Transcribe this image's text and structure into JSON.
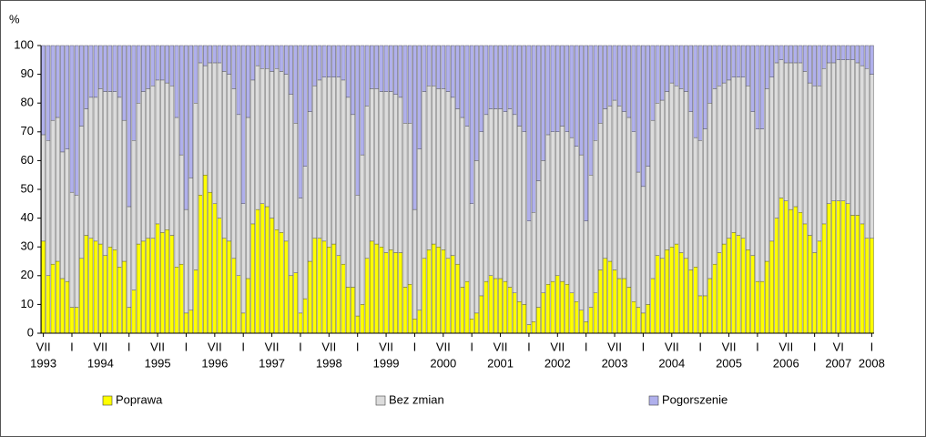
{
  "chart_data": {
    "type": "stacked_bar",
    "y_unit": "%",
    "ylim": [
      0,
      100
    ],
    "yticks": [
      0,
      10,
      20,
      30,
      40,
      50,
      60,
      70,
      80,
      90,
      100
    ],
    "grid": false,
    "legend": "bottom",
    "categories": [
      "VII",
      null,
      null,
      null,
      null,
      null,
      "I",
      null,
      null,
      null,
      null,
      null,
      "VII",
      null,
      null,
      null,
      null,
      null,
      "I",
      null,
      null,
      null,
      null,
      null,
      "VII",
      null,
      null,
      null,
      null,
      null,
      "I",
      null,
      null,
      null,
      null,
      null,
      "VII",
      null,
      null,
      null,
      null,
      null,
      "I",
      null,
      null,
      null,
      null,
      null,
      "VII",
      null,
      null,
      null,
      null,
      null,
      "I",
      null,
      null,
      null,
      null,
      null,
      "VII",
      null,
      null,
      null,
      null,
      null,
      "I",
      null,
      null,
      null,
      null,
      null,
      "VII",
      null,
      null,
      null,
      null,
      null,
      "I",
      null,
      null,
      null,
      null,
      null,
      "VII",
      null,
      null,
      null,
      null,
      null,
      "I",
      null,
      null,
      null,
      null,
      null,
      "VII",
      null,
      null,
      null,
      null,
      null,
      "I",
      null,
      null,
      null,
      null,
      null,
      "VII",
      null,
      null,
      null,
      null,
      null,
      "I",
      null,
      null,
      null,
      null,
      null,
      "VII",
      null,
      null,
      null,
      null,
      null,
      "I",
      null,
      null,
      null,
      null,
      null,
      "VII",
      null,
      null,
      null,
      null,
      null,
      "I",
      null,
      null,
      null,
      null,
      null,
      "VII",
      null,
      null,
      null,
      null,
      null,
      "I",
      null,
      null,
      null,
      null,
      null,
      "VII",
      null,
      null,
      null,
      null,
      null,
      "I",
      null,
      null,
      null,
      null,
      "VI",
      null,
      null,
      null,
      null,
      null,
      null,
      "I"
    ],
    "category_years": [
      "1993",
      null,
      null,
      null,
      null,
      null,
      null,
      null,
      null,
      null,
      null,
      null,
      "1994",
      null,
      null,
      null,
      null,
      null,
      null,
      null,
      null,
      null,
      null,
      null,
      "1995",
      null,
      null,
      null,
      null,
      null,
      null,
      null,
      null,
      null,
      null,
      null,
      "1996",
      null,
      null,
      null,
      null,
      null,
      null,
      null,
      null,
      null,
      null,
      null,
      "1997",
      null,
      null,
      null,
      null,
      null,
      null,
      null,
      null,
      null,
      null,
      null,
      "1998",
      null,
      null,
      null,
      null,
      null,
      null,
      null,
      null,
      null,
      null,
      null,
      "1999",
      null,
      null,
      null,
      null,
      null,
      null,
      null,
      null,
      null,
      null,
      null,
      "2000",
      null,
      null,
      null,
      null,
      null,
      null,
      null,
      null,
      null,
      null,
      null,
      "2001",
      null,
      null,
      null,
      null,
      null,
      null,
      null,
      null,
      null,
      null,
      null,
      "2002",
      null,
      null,
      null,
      null,
      null,
      null,
      null,
      null,
      null,
      null,
      null,
      "2003",
      null,
      null,
      null,
      null,
      null,
      null,
      null,
      null,
      null,
      null,
      null,
      "2004",
      null,
      null,
      null,
      null,
      null,
      null,
      null,
      null,
      null,
      null,
      null,
      "2005",
      null,
      null,
      null,
      null,
      null,
      null,
      null,
      null,
      null,
      null,
      null,
      "2006",
      null,
      null,
      null,
      null,
      null,
      null,
      null,
      null,
      null,
      null,
      "2007",
      null,
      null,
      null,
      null,
      null,
      null,
      "2008"
    ],
    "series": [
      {
        "name": "Poprawa",
        "color": "#ffff00",
        "values": [
          32,
          20,
          24,
          25,
          19,
          18,
          9,
          9,
          26,
          34,
          33,
          32,
          31,
          27,
          30,
          29,
          23,
          25,
          9,
          15,
          31,
          32,
          33,
          33,
          38,
          35,
          36,
          34,
          23,
          24,
          7,
          8,
          22,
          48,
          55,
          49,
          45,
          40,
          33,
          32,
          26,
          20,
          7,
          19,
          38,
          43,
          45,
          44,
          40,
          36,
          35,
          32,
          20,
          21,
          7,
          12,
          25,
          33,
          33,
          32,
          30,
          31,
          27,
          24,
          16,
          16,
          6,
          10,
          26,
          32,
          31,
          30,
          28,
          29,
          28,
          28,
          16,
          17,
          5,
          8,
          26,
          29,
          31,
          30,
          29,
          26,
          27,
          24,
          16,
          18,
          5,
          7,
          13,
          18,
          20,
          19,
          19,
          18,
          16,
          14,
          11,
          10,
          3,
          4,
          9,
          14,
          17,
          18,
          20,
          18,
          17,
          14,
          11,
          8,
          4,
          9,
          14,
          22,
          26,
          25,
          22,
          19,
          19,
          16,
          11,
          9,
          7,
          10,
          19,
          27,
          26,
          29,
          30,
          31,
          28,
          26,
          22,
          23,
          13,
          13,
          19,
          24,
          28,
          31,
          33,
          35,
          34,
          33,
          29,
          27,
          18,
          18,
          25,
          32,
          40,
          47,
          46,
          43,
          44,
          42,
          38,
          34,
          28,
          32,
          38,
          45,
          46,
          46,
          46,
          45,
          41,
          41,
          38,
          33,
          33
        ]
      },
      {
        "name": "Bez zmian",
        "color": "#dcdcdc",
        "values": [
          37,
          47,
          50,
          50,
          44,
          46,
          40,
          39,
          46,
          44,
          49,
          50,
          54,
          57,
          54,
          55,
          59,
          49,
          35,
          52,
          49,
          52,
          52,
          53,
          50,
          53,
          51,
          52,
          52,
          38,
          36,
          46,
          58,
          46,
          38,
          45,
          49,
          54,
          58,
          58,
          59,
          56,
          38,
          56,
          50,
          50,
          47,
          48,
          51,
          56,
          56,
          58,
          63,
          52,
          40,
          46,
          52,
          53,
          55,
          57,
          59,
          58,
          62,
          64,
          66,
          60,
          42,
          52,
          53,
          53,
          54,
          54,
          56,
          55,
          55,
          54,
          57,
          56,
          38,
          56,
          58,
          57,
          55,
          55,
          56,
          58,
          55,
          54,
          59,
          54,
          40,
          53,
          57,
          58,
          58,
          59,
          59,
          59,
          62,
          62,
          61,
          60,
          36,
          38,
          44,
          46,
          52,
          52,
          50,
          54,
          53,
          54,
          54,
          54,
          35,
          46,
          53,
          51,
          52,
          54,
          59,
          60,
          58,
          59,
          59,
          47,
          44,
          48,
          55,
          53,
          55,
          55,
          57,
          55,
          57,
          58,
          55,
          45,
          54,
          58,
          61,
          61,
          58,
          56,
          55,
          54,
          55,
          56,
          57,
          50,
          53,
          53,
          60,
          57,
          54,
          48,
          48,
          51,
          50,
          52,
          53,
          53,
          58,
          54,
          54,
          49,
          48,
          49,
          49,
          50,
          54,
          53,
          55,
          59,
          57
        ]
      },
      {
        "name": "Pogorszenie",
        "color": "#b0b0ec",
        "values": [
          31,
          33,
          26,
          25,
          37,
          36,
          51,
          52,
          28,
          22,
          18,
          18,
          15,
          16,
          16,
          16,
          18,
          26,
          56,
          33,
          20,
          16,
          15,
          14,
          12,
          12,
          13,
          14,
          25,
          38,
          57,
          46,
          20,
          6,
          7,
          6,
          6,
          6,
          9,
          10,
          15,
          24,
          55,
          25,
          12,
          7,
          8,
          8,
          9,
          8,
          9,
          10,
          17,
          27,
          53,
          42,
          23,
          14,
          12,
          11,
          11,
          11,
          11,
          12,
          18,
          24,
          52,
          38,
          21,
          15,
          15,
          16,
          16,
          16,
          17,
          18,
          27,
          27,
          57,
          36,
          16,
          14,
          14,
          15,
          15,
          16,
          18,
          22,
          25,
          28,
          55,
          40,
          30,
          24,
          22,
          22,
          22,
          23,
          22,
          24,
          28,
          30,
          61,
          58,
          47,
          40,
          31,
          30,
          30,
          28,
          30,
          32,
          35,
          38,
          61,
          45,
          33,
          27,
          22,
          21,
          19,
          21,
          23,
          25,
          30,
          44,
          49,
          42,
          26,
          20,
          19,
          16,
          13,
          14,
          15,
          16,
          23,
          32,
          33,
          29,
          20,
          15,
          14,
          13,
          12,
          11,
          11,
          11,
          14,
          23,
          29,
          29,
          15,
          11,
          6,
          5,
          6,
          6,
          6,
          6,
          9,
          13,
          14,
          14,
          8,
          6,
          6,
          5,
          5,
          5,
          5,
          6,
          7,
          8,
          10
        ]
      }
    ]
  }
}
